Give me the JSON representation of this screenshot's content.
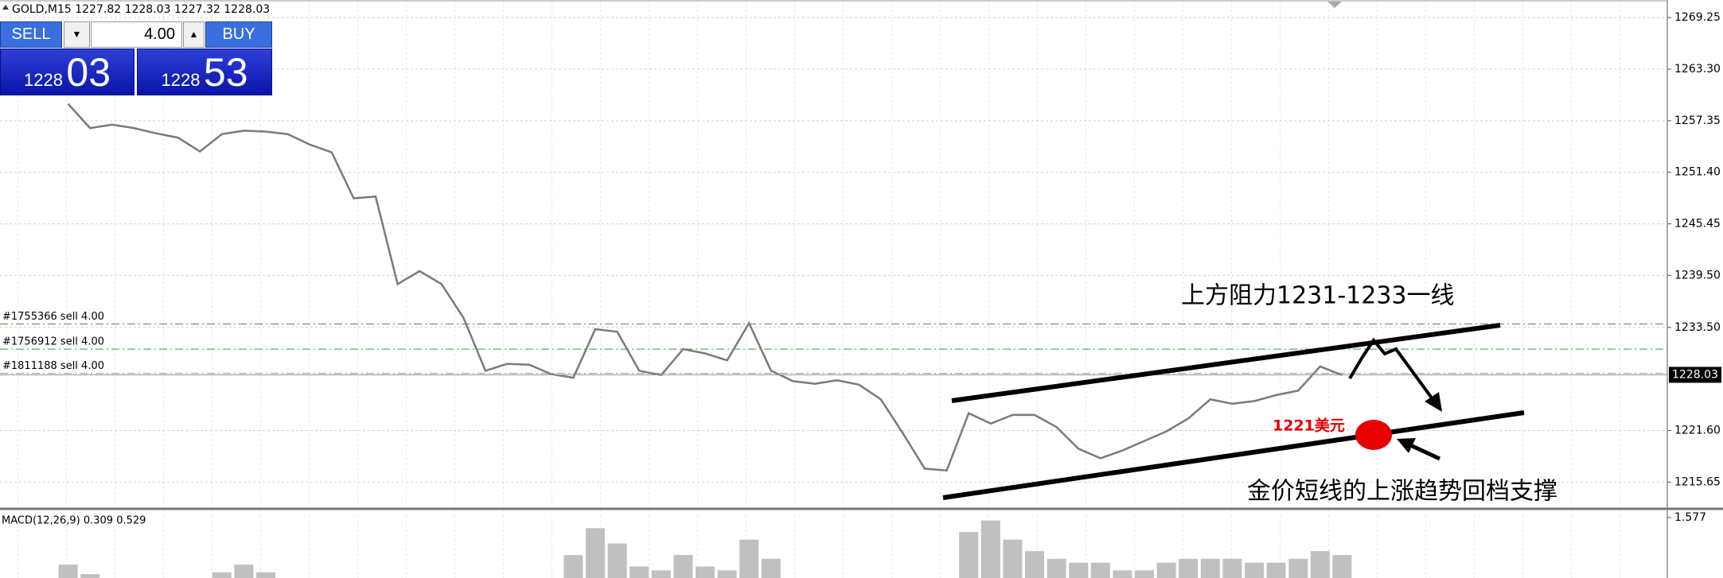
{
  "chart_data": {
    "type": "line",
    "title": "GOLD,M15 1227.82 1228.03 1227.32 1228.03",
    "values": [
      1259.3,
      1256.5,
      1256.9,
      1256.5,
      1255.9,
      1255.4,
      1253.8,
      1255.8,
      1256.2,
      1256.1,
      1255.8,
      1254.6,
      1253.7,
      1248.4,
      1248.6,
      1238.5,
      1240.0,
      1238.5,
      1234.6,
      1228.5,
      1229.3,
      1229.2,
      1228.1,
      1227.7,
      1233.3,
      1233.0,
      1228.5,
      1228.0,
      1231.0,
      1230.5,
      1229.7,
      1234.0,
      1228.5,
      1227.3,
      1227.0,
      1227.4,
      1226.9,
      1225.2,
      1221.3,
      1217.2,
      1217.0,
      1223.6,
      1222.4,
      1223.4,
      1223.4,
      1222.0,
      1219.5,
      1218.4,
      1219.3,
      1220.4,
      1221.5,
      1223.0,
      1225.2,
      1224.7,
      1225.0,
      1225.7,
      1226.2,
      1229.0,
      1228.0
    ],
    "color": "#7a7a7a",
    "ylim": [
      1212.66,
      1271.28
    ],
    "yticks": [
      1269.25,
      {
        "value": 1263.3,
        "label": "1263.30"
      },
      1257.35,
      {
        "value": 1251.4,
        "label": "1251.40"
      },
      1245.45,
      {
        "value": 1239.5,
        "label": "1239.50"
      },
      {
        "value": 1233.5,
        "label": "1233.50"
      },
      {
        "value": 1221.6,
        "label": "1221.60"
      },
      1215.65
    ],
    "grid": true,
    "last_price": 1228.03,
    "orders": [
      {
        "label": "#1755366 sell 4.00",
        "value": 1233.9,
        "color": "#3a9a3a"
      },
      {
        "label": "#1756912 sell 4.00",
        "value": 1231.0,
        "color": "#3a9a3a"
      },
      {
        "label": "#1811188 sell 4.00",
        "value": 1228.2,
        "color": "#8a9aa8"
      }
    ],
    "annotations": [
      "上方阻力1231-1233一线",
      "1221美元",
      "金价短线的上涨趋势回档支撑"
    ],
    "macd": {
      "type": "bar",
      "label": "MACD(12,26,9) 0.309 0.529",
      "values": [
        0.35,
        0.1,
        0,
        0,
        0,
        0,
        0,
        0.15,
        0.35,
        0.15,
        0,
        0,
        0,
        0,
        0,
        0,
        0,
        0,
        0,
        0,
        0,
        0,
        0,
        0.6,
        1.3,
        0.9,
        0.3,
        0.2,
        0.6,
        0.3,
        0.2,
        1.0,
        0.5,
        0,
        0,
        0,
        0,
        0,
        0,
        0,
        0,
        1.2,
        1.5,
        1.0,
        0.7,
        0.5,
        0.4,
        0.4,
        0.2,
        0.2,
        0.4,
        0.5,
        0.5,
        0.5,
        0.4,
        0.4,
        0.5,
        0.7,
        0.6
      ],
      "color": "#c0c0c0",
      "ylim": [
        0,
        1.7
      ],
      "yticks": [
        1.577
      ]
    }
  },
  "trade_panel": {
    "sell": "SELL",
    "buy": "BUY",
    "volume": "4.00",
    "sell_price_big": "1228",
    "sell_price_pips": "03",
    "buy_price_big": "1228",
    "buy_price_pips": "53"
  }
}
